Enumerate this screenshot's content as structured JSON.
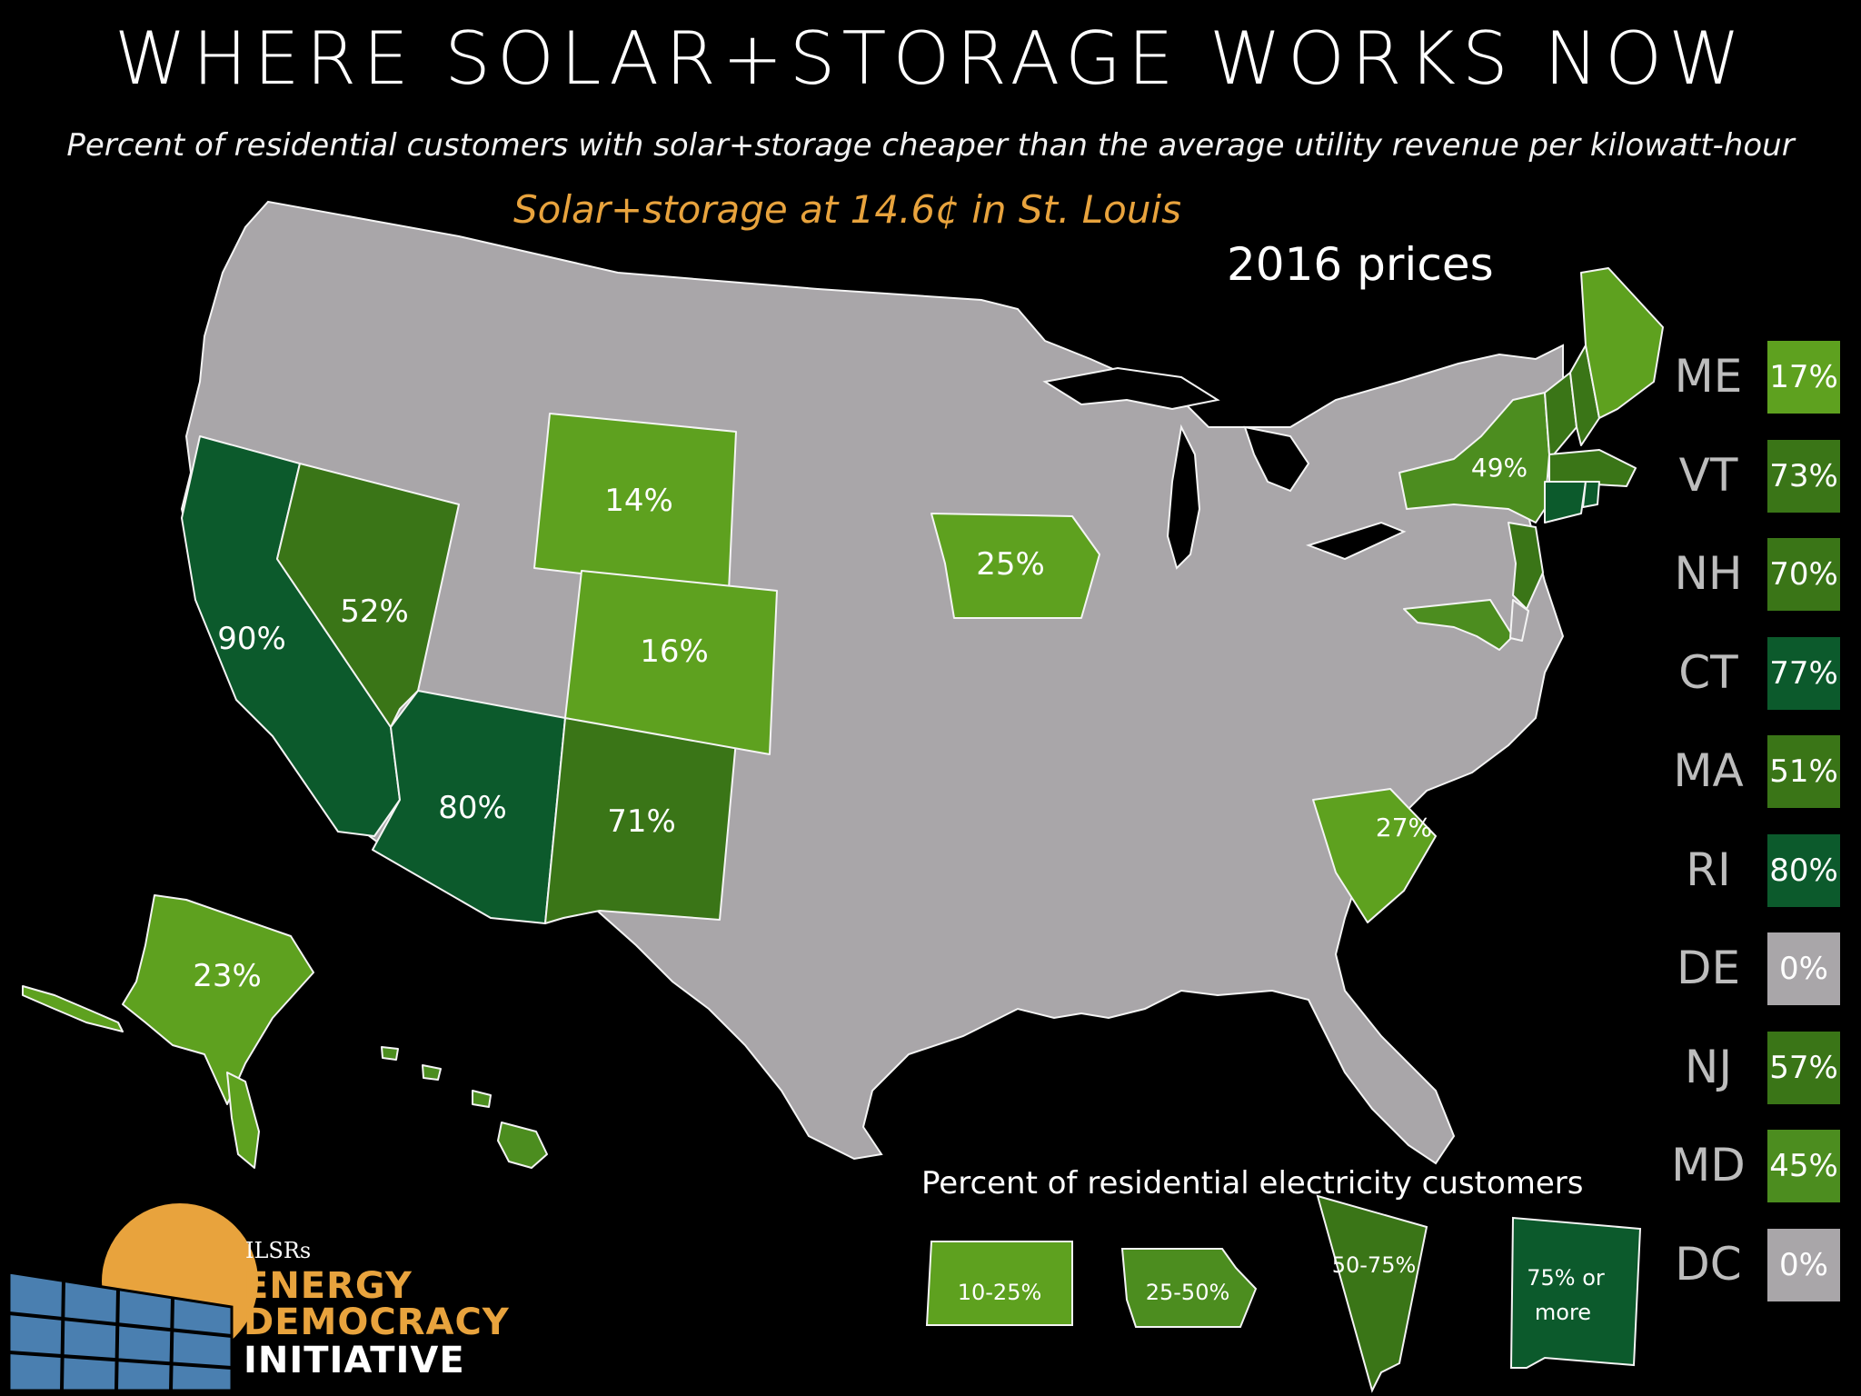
{
  "title": "WHERE SOLAR+STORAGE WORKS NOW",
  "subtitle": "Percent of residential customers with solar+storage cheaper than the average utility revenue per kilowatt-hour",
  "highlight": "Solar+storage at 14.6¢ in St. Louis",
  "year_label": "2016 prices",
  "colors": {
    "none": "#a9a6a9",
    "tier_10_25": "#5ea11f",
    "tier_25_50": "#4c8d1f",
    "tier_50_75": "#3a7517",
    "tier_75_plus": "#0c5a2c",
    "highlight": "#e8a33d"
  },
  "map_labels": {
    "CA": "90%",
    "NV": "52%",
    "AZ": "80%",
    "NM": "71%",
    "WY": "14%",
    "CO": "16%",
    "IA": "25%",
    "SC": "27%",
    "NY": "49%",
    "AK": "23%"
  },
  "side_legend": [
    {
      "state": "ME",
      "value": "17%",
      "tier": "tier_10_25"
    },
    {
      "state": "VT",
      "value": "73%",
      "tier": "tier_50_75"
    },
    {
      "state": "NH",
      "value": "70%",
      "tier": "tier_50_75"
    },
    {
      "state": "CT",
      "value": "77%",
      "tier": "tier_75_plus"
    },
    {
      "state": "MA",
      "value": "51%",
      "tier": "tier_50_75"
    },
    {
      "state": "RI",
      "value": "80%",
      "tier": "tier_75_plus"
    },
    {
      "state": "DE",
      "value": "0%",
      "tier": "none"
    },
    {
      "state": "NJ",
      "value": "57%",
      "tier": "tier_50_75"
    },
    {
      "state": "MD",
      "value": "45%",
      "tier": "tier_25_50"
    },
    {
      "state": "DC",
      "value": "0%",
      "tier": "none"
    }
  ],
  "legend": {
    "title": "Percent of residential electricity customers",
    "items": [
      {
        "label": "10-25%",
        "tier": "tier_10_25"
      },
      {
        "label": "25-50%",
        "tier": "tier_25_50"
      },
      {
        "label": "50-75%",
        "tier": "tier_50_75"
      },
      {
        "label_line1": "75% or",
        "label_line2": "more",
        "tier": "tier_75_plus"
      }
    ]
  },
  "logo": {
    "org": "ILSRs",
    "line1": "ENERGY",
    "line2": "DEMOCRACY",
    "line3": "INITIATIVE"
  }
}
